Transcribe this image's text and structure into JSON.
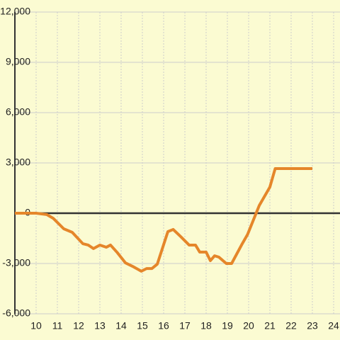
{
  "chart_data": {
    "type": "line",
    "x": [
      9,
      10,
      10.5,
      10.8,
      11.3,
      11.7,
      12.2,
      12.45,
      12.7,
      13,
      13.3,
      13.5,
      13.8,
      14.2,
      14.6,
      14.95,
      15.2,
      15.45,
      15.7,
      16.2,
      16.45,
      16.8,
      17.2,
      17.5,
      17.7,
      18,
      18.2,
      18.4,
      18.6,
      18.95,
      19.2,
      19.7,
      19.95,
      20.5,
      21,
      21.25,
      23
    ],
    "series": [
      {
        "color": "#e5862a",
        "values": [
          0,
          0,
          -80,
          -300,
          -930,
          -1140,
          -1820,
          -1900,
          -2110,
          -1900,
          -2030,
          -1900,
          -2320,
          -2960,
          -3210,
          -3460,
          -3300,
          -3300,
          -3040,
          -1100,
          -970,
          -1390,
          -1900,
          -1900,
          -2320,
          -2320,
          -2830,
          -2540,
          -2620,
          -3000,
          -3000,
          -1820,
          -1270,
          460,
          1560,
          2660,
          2660
        ]
      }
    ],
    "xlim": [
      9,
      24.3
    ],
    "xticks": [
      10,
      11,
      12,
      13,
      14,
      15,
      16,
      17,
      18,
      19,
      20,
      21,
      22,
      23,
      24
    ],
    "ylim": [
      -6000,
      12000
    ],
    "yticks": [
      {
        "value": -6000,
        "label": "-6,000"
      },
      {
        "value": -3000,
        "label": "-3,000"
      },
      0,
      {
        "value": 3000,
        "label": "3,000"
      },
      {
        "value": 6000,
        "label": "6,000"
      },
      {
        "value": 9000,
        "label": "9,000"
      },
      {
        "value": 12000,
        "label": "12,000"
      }
    ],
    "grid": true
  }
}
